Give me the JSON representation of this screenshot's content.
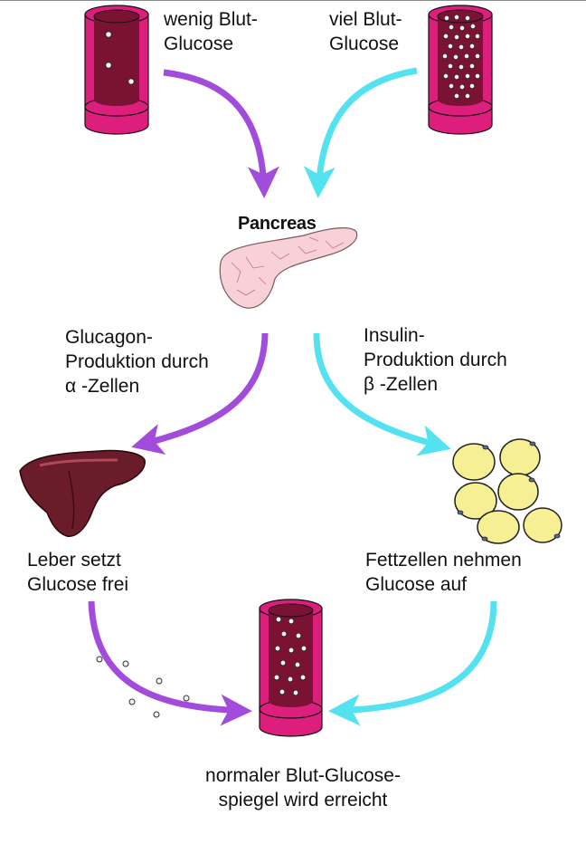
{
  "labels": {
    "low_glucose": "wenig Blut-\nGlucose",
    "high_glucose": "viel Blut-\nGlucose",
    "pancreas": "Pancreas",
    "glucagon": "Glucagon-\nProduktion durch\nα -Zellen",
    "insulin": "Insulin-\nProduktion durch\nβ -Zellen",
    "liver": "Leber setzt\nGlucose frei",
    "fat_cells": "Fettzellen nehmen\nGlucose auf",
    "normal": "normaler Blut-Glucose-\nspiegel wird erreicht"
  },
  "colors": {
    "glucagon_path": "#a24cdc",
    "insulin_path": "#55e2f0",
    "vessel": "#dd1e7c",
    "blood": "#7a1233",
    "liver": "#6a1c2a",
    "fat_cell": "#f7ef93",
    "pancreas": "#f8d0d7"
  },
  "icons": {
    "low_vessel": "blood-vessel-icon",
    "high_vessel": "blood-vessel-icon",
    "pancreas": "pancreas-icon",
    "liver": "liver-icon",
    "fat_cells": "fat-cells-icon",
    "normal_vessel": "blood-vessel-icon"
  }
}
